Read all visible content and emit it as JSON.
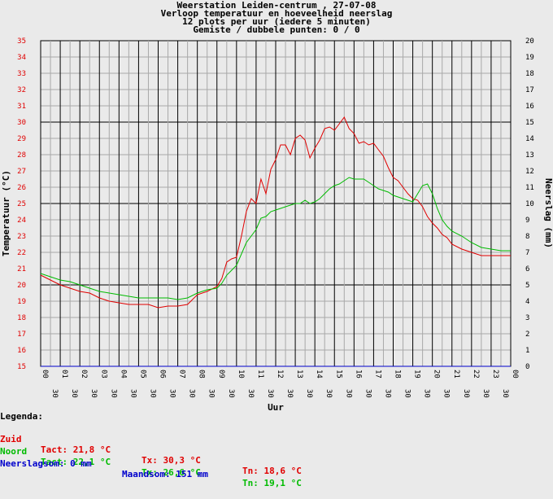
{
  "title": {
    "line1": "Weerstation Leiden-centrum , 27-07-08",
    "line2": "Verloop temperatuur en hoeveelheid neerslag",
    "line3": "12 plots per uur (iedere 5 minuten)",
    "line4": "Gemiste / dubbele punten: 0 / 0"
  },
  "colors": {
    "zuid": "#e00000",
    "noord": "#00bb00",
    "neerslag": "#0000cc",
    "background": "#eaeaea",
    "grid": "#a8a8a8"
  },
  "chart_data": {
    "type": "line",
    "xlabel": "Uur",
    "ylabel_left": "Temperatuur (°C)",
    "ylabel_right": "Neerslag (mm)",
    "ylim_left": [
      15,
      35
    ],
    "ylim_right": [
      0,
      20
    ],
    "xlim": [
      0,
      24
    ],
    "grid": true,
    "x_tick_labels": [
      "00",
      "01",
      "02",
      "03",
      "04",
      "05",
      "06",
      "07",
      "08",
      "09",
      "10",
      "11",
      "12",
      "13",
      "14",
      "15",
      "16",
      "17",
      "18",
      "19",
      "20",
      "21",
      "22",
      "23",
      "00"
    ],
    "x_half_label": "30",
    "y_left_ticks": [
      "15",
      "16",
      "17",
      "18",
      "19",
      "20",
      "21",
      "22",
      "23",
      "24",
      "25",
      "26",
      "27",
      "28",
      "29",
      "30",
      "31",
      "32",
      "33",
      "34",
      "35"
    ],
    "y_right_ticks": [
      "0",
      "1",
      "2",
      "3",
      "4",
      "5",
      "6",
      "7",
      "8",
      "9",
      "10",
      "11",
      "12",
      "13",
      "14",
      "15",
      "16",
      "17",
      "18",
      "19",
      "20"
    ],
    "series": [
      {
        "name": "Zuid",
        "color": "#e00000",
        "x": [
          0,
          0.5,
          1,
          1.5,
          2,
          2.5,
          3,
          3.5,
          4,
          4.5,
          5,
          5.5,
          6,
          6.5,
          7,
          7.5,
          8,
          8.5,
          9,
          9.25,
          9.5,
          9.75,
          10,
          10.25,
          10.5,
          10.75,
          11,
          11.25,
          11.5,
          11.75,
          12,
          12.25,
          12.5,
          12.75,
          13,
          13.25,
          13.5,
          13.75,
          14,
          14.25,
          14.5,
          14.75,
          15,
          15.25,
          15.5,
          15.75,
          16,
          16.25,
          16.5,
          16.75,
          17,
          17.25,
          17.5,
          17.75,
          18,
          18.25,
          18.5,
          18.75,
          19,
          19.25,
          19.5,
          19.75,
          20,
          20.25,
          20.5,
          20.75,
          21,
          21.5,
          22,
          22.5,
          23,
          23.5,
          24
        ],
        "values": [
          20.6,
          20.3,
          20.0,
          19.8,
          19.6,
          19.5,
          19.2,
          19.0,
          18.9,
          18.8,
          18.8,
          18.8,
          18.6,
          18.7,
          18.7,
          18.8,
          19.4,
          19.6,
          19.9,
          20.4,
          21.4,
          21.6,
          21.7,
          23.0,
          24.5,
          25.3,
          25.0,
          26.5,
          25.6,
          27.1,
          27.7,
          28.6,
          28.6,
          28.0,
          29.0,
          29.2,
          28.9,
          27.8,
          28.4,
          28.9,
          29.6,
          29.7,
          29.5,
          29.9,
          30.3,
          29.6,
          29.3,
          28.7,
          28.8,
          28.6,
          28.7,
          28.3,
          27.9,
          27.2,
          26.6,
          26.4,
          26.0,
          25.6,
          25.3,
          25.2,
          24.8,
          24.2,
          23.8,
          23.5,
          23.1,
          22.9,
          22.5,
          22.2,
          22.0,
          21.8,
          21.8,
          21.8,
          21.8
        ]
      },
      {
        "name": "Noord",
        "color": "#00bb00",
        "x": [
          0,
          0.5,
          1,
          1.5,
          2,
          2.5,
          3,
          3.5,
          4,
          4.5,
          5,
          5.5,
          6,
          6.5,
          7,
          7.5,
          8,
          8.5,
          9,
          9.25,
          9.5,
          9.75,
          10,
          10.25,
          10.5,
          10.75,
          11,
          11.25,
          11.5,
          11.75,
          12,
          12.25,
          12.5,
          12.75,
          13,
          13.25,
          13.5,
          13.75,
          14,
          14.25,
          14.5,
          14.75,
          15,
          15.25,
          15.5,
          15.75,
          16,
          16.25,
          16.5,
          16.75,
          17,
          17.25,
          17.5,
          17.75,
          18,
          18.25,
          18.5,
          18.75,
          19,
          19.25,
          19.5,
          19.75,
          20,
          20.25,
          20.5,
          20.75,
          21,
          21.5,
          22,
          22.5,
          23,
          23.5,
          24
        ],
        "values": [
          20.7,
          20.5,
          20.3,
          20.2,
          20.0,
          19.8,
          19.6,
          19.5,
          19.4,
          19.3,
          19.2,
          19.2,
          19.2,
          19.2,
          19.1,
          19.2,
          19.5,
          19.7,
          19.8,
          20.1,
          20.6,
          20.9,
          21.2,
          21.9,
          22.6,
          23.0,
          23.4,
          24.1,
          24.2,
          24.5,
          24.6,
          24.7,
          24.8,
          24.9,
          25.0,
          25.0,
          25.2,
          25.0,
          25.1,
          25.3,
          25.6,
          25.9,
          26.1,
          26.2,
          26.4,
          26.6,
          26.5,
          26.5,
          26.5,
          26.3,
          26.1,
          25.9,
          25.8,
          25.7,
          25.5,
          25.4,
          25.3,
          25.2,
          25.1,
          25.6,
          26.1,
          26.2,
          25.6,
          24.7,
          24.0,
          23.6,
          23.3,
          23.0,
          22.6,
          22.3,
          22.2,
          22.1,
          22.1
        ]
      },
      {
        "name": "Neerslag",
        "color": "#0000cc",
        "axis": "right",
        "x": [
          0,
          24
        ],
        "values": [
          0,
          0
        ]
      }
    ]
  },
  "legend": {
    "heading": "Legenda:",
    "zuid": {
      "label": "Zuid",
      "tact": "Tact: 21,8 °C",
      "tx": "Tx: 30,3 °C",
      "tn": "Tn: 18,6 °C"
    },
    "noord": {
      "label": "Noord",
      "tact": "Tact: 22,1 °C",
      "tx": "Tx: 26,6 °C",
      "tn": "Tn: 19,1 °C"
    },
    "neerslag": {
      "label": "Neerslagsom: 0 mm",
      "maand": "Maandsom: 151 mm"
    }
  }
}
